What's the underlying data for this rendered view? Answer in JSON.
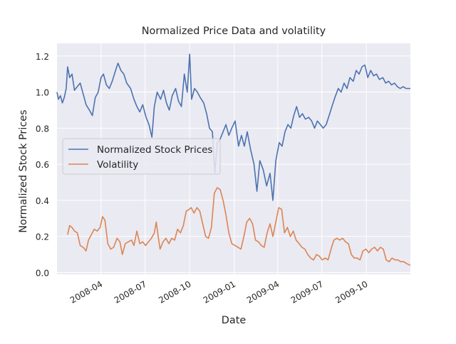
{
  "chart_data": {
    "type": "line",
    "title": "Normalized Price Data and volatility",
    "xlabel": "Date",
    "ylabel": "Normalized Stock Prices",
    "xlim": [
      "2008-01-01",
      "2009-12-31"
    ],
    "ylim": [
      -0.01,
      1.27
    ],
    "grid": true,
    "legend_position": "center-left",
    "x_ticks": [
      "2008-04",
      "2008-07",
      "2008-10",
      "2009-01",
      "2009-04",
      "2009-07",
      "2009-10"
    ],
    "y_ticks": [
      0.0,
      0.2,
      0.4,
      0.6,
      0.8,
      1.0,
      1.2
    ],
    "y_tick_labels": [
      "0.0",
      "0.2",
      "0.4",
      "0.6",
      "0.8",
      "1.0",
      "1.2"
    ],
    "colors": {
      "background": "#eaeaf2",
      "grid": "#ffffff",
      "text": "#262626",
      "series_1": "#4c72b0",
      "series_2": "#dd8452"
    },
    "series": [
      {
        "name": "Normalized Stock Prices",
        "color": "#4c72b0",
        "points": [
          [
            "2008-01-01",
            1.0
          ],
          [
            "2008-01-04",
            0.96
          ],
          [
            "2008-01-08",
            0.98
          ],
          [
            "2008-01-12",
            0.94
          ],
          [
            "2008-01-16",
            0.97
          ],
          [
            "2008-01-20",
            1.02
          ],
          [
            "2008-01-23",
            1.14
          ],
          [
            "2008-01-27",
            1.08
          ],
          [
            "2008-02-01",
            1.1
          ],
          [
            "2008-02-06",
            1.01
          ],
          [
            "2008-02-12",
            1.03
          ],
          [
            "2008-02-18",
            1.05
          ],
          [
            "2008-02-24",
            0.99
          ],
          [
            "2008-03-01",
            0.93
          ],
          [
            "2008-03-08",
            0.9
          ],
          [
            "2008-03-14",
            0.87
          ],
          [
            "2008-03-20",
            0.97
          ],
          [
            "2008-03-26",
            1.0
          ],
          [
            "2008-04-01",
            1.08
          ],
          [
            "2008-04-06",
            1.1
          ],
          [
            "2008-04-12",
            1.04
          ],
          [
            "2008-04-18",
            1.02
          ],
          [
            "2008-04-24",
            1.06
          ],
          [
            "2008-05-01",
            1.12
          ],
          [
            "2008-05-06",
            1.16
          ],
          [
            "2008-05-12",
            1.12
          ],
          [
            "2008-05-18",
            1.1
          ],
          [
            "2008-05-24",
            1.05
          ],
          [
            "2008-06-01",
            1.02
          ],
          [
            "2008-06-08",
            0.96
          ],
          [
            "2008-06-14",
            0.92
          ],
          [
            "2008-06-20",
            0.89
          ],
          [
            "2008-06-26",
            0.93
          ],
          [
            "2008-07-03",
            0.86
          ],
          [
            "2008-07-09",
            0.82
          ],
          [
            "2008-07-15",
            0.75
          ],
          [
            "2008-07-20",
            0.92
          ],
          [
            "2008-07-26",
            1.0
          ],
          [
            "2008-08-02",
            0.96
          ],
          [
            "2008-08-08",
            1.01
          ],
          [
            "2008-08-14",
            0.94
          ],
          [
            "2008-08-20",
            0.9
          ],
          [
            "2008-08-26",
            0.98
          ],
          [
            "2008-09-02",
            1.02
          ],
          [
            "2008-09-08",
            0.95
          ],
          [
            "2008-09-14",
            0.92
          ],
          [
            "2008-09-20",
            1.1
          ],
          [
            "2008-09-26",
            1.0
          ],
          [
            "2008-10-01",
            1.21
          ],
          [
            "2008-10-05",
            0.96
          ],
          [
            "2008-10-11",
            1.02
          ],
          [
            "2008-10-17",
            1.0
          ],
          [
            "2008-10-23",
            0.97
          ],
          [
            "2008-10-30",
            0.94
          ],
          [
            "2008-11-05",
            0.88
          ],
          [
            "2008-11-11",
            0.8
          ],
          [
            "2008-11-17",
            0.78
          ],
          [
            "2008-11-22",
            0.55
          ],
          [
            "2008-11-27",
            0.72
          ],
          [
            "2008-12-03",
            0.74
          ],
          [
            "2008-12-09",
            0.78
          ],
          [
            "2008-12-15",
            0.82
          ],
          [
            "2008-12-21",
            0.76
          ],
          [
            "2008-12-27",
            0.8
          ],
          [
            "2009-01-03",
            0.84
          ],
          [
            "2009-01-10",
            0.7
          ],
          [
            "2009-01-16",
            0.76
          ],
          [
            "2009-01-22",
            0.7
          ],
          [
            "2009-01-28",
            0.78
          ],
          [
            "2009-02-04",
            0.68
          ],
          [
            "2009-02-11",
            0.6
          ],
          [
            "2009-02-17",
            0.45
          ],
          [
            "2009-02-23",
            0.62
          ],
          [
            "2009-03-02",
            0.57
          ],
          [
            "2009-03-09",
            0.48
          ],
          [
            "2009-03-16",
            0.55
          ],
          [
            "2009-03-22",
            0.4
          ],
          [
            "2009-03-28",
            0.62
          ],
          [
            "2009-04-04",
            0.72
          ],
          [
            "2009-04-10",
            0.7
          ],
          [
            "2009-04-16",
            0.78
          ],
          [
            "2009-04-22",
            0.82
          ],
          [
            "2009-04-28",
            0.8
          ],
          [
            "2009-05-04",
            0.87
          ],
          [
            "2009-05-10",
            0.92
          ],
          [
            "2009-05-16",
            0.86
          ],
          [
            "2009-05-22",
            0.88
          ],
          [
            "2009-05-28",
            0.85
          ],
          [
            "2009-06-04",
            0.86
          ],
          [
            "2009-06-10",
            0.84
          ],
          [
            "2009-06-16",
            0.8
          ],
          [
            "2009-06-22",
            0.84
          ],
          [
            "2009-06-28",
            0.82
          ],
          [
            "2009-07-04",
            0.8
          ],
          [
            "2009-07-10",
            0.82
          ],
          [
            "2009-07-16",
            0.87
          ],
          [
            "2009-07-22",
            0.92
          ],
          [
            "2009-07-28",
            0.97
          ],
          [
            "2009-08-04",
            1.02
          ],
          [
            "2009-08-10",
            1.0
          ],
          [
            "2009-08-16",
            1.05
          ],
          [
            "2009-08-22",
            1.02
          ],
          [
            "2009-08-28",
            1.08
          ],
          [
            "2009-09-04",
            1.06
          ],
          [
            "2009-09-10",
            1.12
          ],
          [
            "2009-09-16",
            1.1
          ],
          [
            "2009-09-22",
            1.14
          ],
          [
            "2009-09-28",
            1.15
          ],
          [
            "2009-10-04",
            1.08
          ],
          [
            "2009-10-10",
            1.12
          ],
          [
            "2009-10-16",
            1.09
          ],
          [
            "2009-10-22",
            1.1
          ],
          [
            "2009-10-28",
            1.07
          ],
          [
            "2009-11-04",
            1.08
          ],
          [
            "2009-11-10",
            1.05
          ],
          [
            "2009-11-16",
            1.06
          ],
          [
            "2009-11-22",
            1.04
          ],
          [
            "2009-11-28",
            1.05
          ],
          [
            "2009-12-04",
            1.03
          ],
          [
            "2009-12-10",
            1.02
          ],
          [
            "2009-12-16",
            1.03
          ],
          [
            "2009-12-22",
            1.02
          ],
          [
            "2009-12-31",
            1.02
          ]
        ]
      },
      {
        "name": "Volatility",
        "color": "#dd8452",
        "points": [
          [
            "2008-01-23",
            0.21
          ],
          [
            "2008-01-27",
            0.26
          ],
          [
            "2008-02-01",
            0.25
          ],
          [
            "2008-02-06",
            0.23
          ],
          [
            "2008-02-12",
            0.22
          ],
          [
            "2008-02-18",
            0.15
          ],
          [
            "2008-02-24",
            0.14
          ],
          [
            "2008-03-01",
            0.12
          ],
          [
            "2008-03-06",
            0.18
          ],
          [
            "2008-03-12",
            0.21
          ],
          [
            "2008-03-18",
            0.24
          ],
          [
            "2008-03-24",
            0.23
          ],
          [
            "2008-03-30",
            0.25
          ],
          [
            "2008-04-04",
            0.31
          ],
          [
            "2008-04-09",
            0.29
          ],
          [
            "2008-04-15",
            0.16
          ],
          [
            "2008-04-21",
            0.13
          ],
          [
            "2008-04-27",
            0.14
          ],
          [
            "2008-05-04",
            0.19
          ],
          [
            "2008-05-10",
            0.17
          ],
          [
            "2008-05-15",
            0.1
          ],
          [
            "2008-05-21",
            0.16
          ],
          [
            "2008-05-27",
            0.17
          ],
          [
            "2008-06-03",
            0.18
          ],
          [
            "2008-06-08",
            0.15
          ],
          [
            "2008-06-14",
            0.23
          ],
          [
            "2008-06-20",
            0.16
          ],
          [
            "2008-06-26",
            0.17
          ],
          [
            "2008-07-02",
            0.15
          ],
          [
            "2008-07-08",
            0.17
          ],
          [
            "2008-07-14",
            0.19
          ],
          [
            "2008-07-20",
            0.22
          ],
          [
            "2008-07-24",
            0.28
          ],
          [
            "2008-07-28",
            0.2
          ],
          [
            "2008-08-01",
            0.13
          ],
          [
            "2008-08-07",
            0.17
          ],
          [
            "2008-08-13",
            0.19
          ],
          [
            "2008-08-19",
            0.16
          ],
          [
            "2008-08-25",
            0.19
          ],
          [
            "2008-08-31",
            0.18
          ],
          [
            "2008-09-06",
            0.24
          ],
          [
            "2008-09-12",
            0.22
          ],
          [
            "2008-09-18",
            0.26
          ],
          [
            "2008-09-24",
            0.34
          ],
          [
            "2008-09-30",
            0.35
          ],
          [
            "2008-10-04",
            0.36
          ],
          [
            "2008-10-10",
            0.33
          ],
          [
            "2008-10-16",
            0.36
          ],
          [
            "2008-10-22",
            0.34
          ],
          [
            "2008-10-28",
            0.27
          ],
          [
            "2008-11-03",
            0.2
          ],
          [
            "2008-11-09",
            0.19
          ],
          [
            "2008-11-15",
            0.25
          ],
          [
            "2008-11-21",
            0.44
          ],
          [
            "2008-11-27",
            0.47
          ],
          [
            "2008-12-03",
            0.46
          ],
          [
            "2008-12-09",
            0.4
          ],
          [
            "2008-12-15",
            0.32
          ],
          [
            "2008-12-21",
            0.22
          ],
          [
            "2008-12-27",
            0.16
          ],
          [
            "2009-01-03",
            0.15
          ],
          [
            "2009-01-09",
            0.14
          ],
          [
            "2009-01-15",
            0.13
          ],
          [
            "2009-01-21",
            0.2
          ],
          [
            "2009-01-27",
            0.28
          ],
          [
            "2009-02-02",
            0.3
          ],
          [
            "2009-02-08",
            0.27
          ],
          [
            "2009-02-14",
            0.18
          ],
          [
            "2009-02-20",
            0.17
          ],
          [
            "2009-02-26",
            0.15
          ],
          [
            "2009-03-04",
            0.14
          ],
          [
            "2009-03-10",
            0.22
          ],
          [
            "2009-03-16",
            0.27
          ],
          [
            "2009-03-22",
            0.2
          ],
          [
            "2009-03-28",
            0.28
          ],
          [
            "2009-04-03",
            0.36
          ],
          [
            "2009-04-09",
            0.35
          ],
          [
            "2009-04-15",
            0.22
          ],
          [
            "2009-04-21",
            0.25
          ],
          [
            "2009-04-27",
            0.2
          ],
          [
            "2009-05-03",
            0.23
          ],
          [
            "2009-05-09",
            0.18
          ],
          [
            "2009-05-15",
            0.16
          ],
          [
            "2009-05-21",
            0.14
          ],
          [
            "2009-05-27",
            0.13
          ],
          [
            "2009-06-02",
            0.1
          ],
          [
            "2009-06-08",
            0.08
          ],
          [
            "2009-06-14",
            0.07
          ],
          [
            "2009-06-20",
            0.1
          ],
          [
            "2009-06-26",
            0.09
          ],
          [
            "2009-07-02",
            0.07
          ],
          [
            "2009-07-08",
            0.08
          ],
          [
            "2009-07-14",
            0.07
          ],
          [
            "2009-07-20",
            0.13
          ],
          [
            "2009-07-26",
            0.18
          ],
          [
            "2009-08-01",
            0.19
          ],
          [
            "2009-08-07",
            0.18
          ],
          [
            "2009-08-13",
            0.19
          ],
          [
            "2009-08-19",
            0.17
          ],
          [
            "2009-08-25",
            0.16
          ],
          [
            "2009-08-31",
            0.1
          ],
          [
            "2009-09-06",
            0.08
          ],
          [
            "2009-09-12",
            0.08
          ],
          [
            "2009-09-18",
            0.07
          ],
          [
            "2009-09-24",
            0.12
          ],
          [
            "2009-09-30",
            0.13
          ],
          [
            "2009-10-06",
            0.11
          ],
          [
            "2009-10-12",
            0.13
          ],
          [
            "2009-10-18",
            0.14
          ],
          [
            "2009-10-24",
            0.12
          ],
          [
            "2009-10-30",
            0.14
          ],
          [
            "2009-11-05",
            0.13
          ],
          [
            "2009-11-11",
            0.07
          ],
          [
            "2009-11-17",
            0.06
          ],
          [
            "2009-11-23",
            0.08
          ],
          [
            "2009-11-29",
            0.07
          ],
          [
            "2009-12-05",
            0.07
          ],
          [
            "2009-12-11",
            0.06
          ],
          [
            "2009-12-17",
            0.06
          ],
          [
            "2009-12-23",
            0.05
          ],
          [
            "2009-12-31",
            0.04
          ]
        ]
      }
    ]
  }
}
